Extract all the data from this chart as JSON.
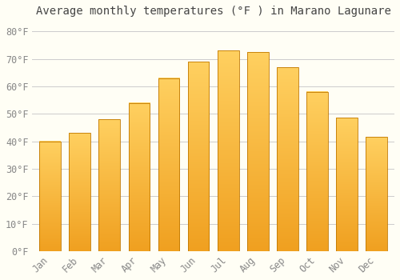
{
  "title": "Average monthly temperatures (°F ) in Marano Lagunare",
  "months": [
    "Jan",
    "Feb",
    "Mar",
    "Apr",
    "May",
    "Jun",
    "Jul",
    "Aug",
    "Sep",
    "Oct",
    "Nov",
    "Dec"
  ],
  "values": [
    40,
    43,
    48,
    54,
    63,
    69,
    73,
    72.5,
    67,
    58,
    48.5,
    41.5
  ],
  "bar_color_bottom": "#F0A020",
  "bar_color_top": "#FFD060",
  "bar_edge_color": "#C07800",
  "background_color": "#FFFEF5",
  "grid_color": "#CCCCCC",
  "yticks": [
    0,
    10,
    20,
    30,
    40,
    50,
    60,
    70,
    80
  ],
  "ylim": [
    0,
    83
  ],
  "title_fontsize": 10,
  "tick_fontsize": 8.5,
  "font_family": "monospace",
  "tick_color": "#888888",
  "title_color": "#444444"
}
